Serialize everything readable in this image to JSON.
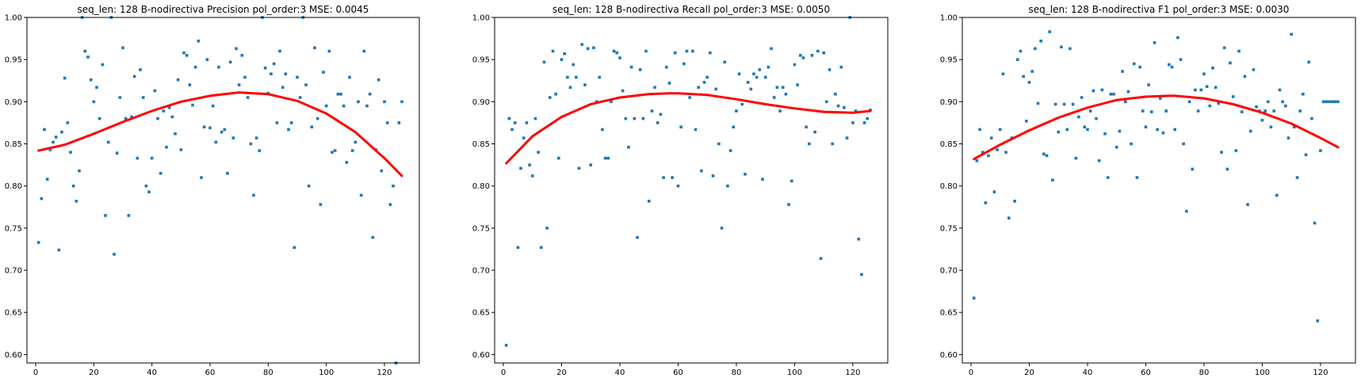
{
  "chart_data": [
    {
      "type": "scatter",
      "title": "seq_len: 128    B-nodirectiva   Precision   pol_order:3   MSE: 0.0045",
      "xlabel": "",
      "ylabel": "",
      "xlim": [
        -3,
        132
      ],
      "ylim": [
        0.59,
        1.0
      ],
      "xticks": [
        0,
        20,
        40,
        60,
        80,
        100,
        120
      ],
      "yticks": [
        0.6,
        0.65,
        0.7,
        0.75,
        0.8,
        0.85,
        0.9,
        0.95,
        1.0
      ],
      "grid": false,
      "point_color": "#1f77b4",
      "fit_color": "#ff0000",
      "points": {
        "x": [
          1,
          2,
          3,
          4,
          5,
          6,
          7,
          8,
          9,
          10,
          11,
          12,
          13,
          14,
          15,
          16,
          17,
          18,
          19,
          20,
          21,
          22,
          23,
          24,
          25,
          26,
          27,
          28,
          29,
          30,
          31,
          32,
          33,
          34,
          35,
          36,
          37,
          38,
          39,
          40,
          41,
          42,
          43,
          44,
          45,
          46,
          47,
          48,
          49,
          50,
          51,
          52,
          53,
          54,
          55,
          56,
          57,
          58,
          59,
          60,
          61,
          62,
          63,
          64,
          65,
          66,
          67,
          68,
          69,
          70,
          71,
          72,
          73,
          74,
          75,
          76,
          77,
          78,
          79,
          80,
          81,
          82,
          83,
          84,
          85,
          86,
          87,
          88,
          89,
          90,
          91,
          92,
          93,
          94,
          95,
          96,
          97,
          98,
          99,
          100,
          101,
          102,
          103,
          104,
          105,
          106,
          107,
          108,
          109,
          110,
          111,
          112,
          113,
          114,
          115,
          116,
          117,
          118,
          119,
          120,
          121,
          122,
          123,
          124,
          125,
          126
        ],
        "y": [
          0.733,
          0.785,
          0.867,
          0.808,
          0.843,
          0.852,
          0.858,
          0.724,
          0.864,
          0.928,
          0.875,
          0.84,
          0.8,
          0.782,
          0.818,
          1.0,
          0.96,
          0.953,
          0.926,
          0.9,
          0.917,
          0.88,
          0.944,
          0.765,
          0.852,
          1.0,
          0.719,
          0.839,
          0.905,
          0.964,
          0.88,
          0.765,
          0.882,
          0.93,
          0.833,
          0.938,
          0.905,
          0.8,
          0.793,
          0.833,
          0.913,
          0.88,
          0.815,
          0.889,
          0.846,
          0.893,
          0.882,
          0.862,
          0.926,
          0.843,
          0.958,
          0.955,
          0.92,
          0.896,
          0.941,
          0.972,
          0.81,
          0.87,
          0.95,
          0.869,
          0.895,
          0.852,
          0.941,
          0.864,
          0.867,
          0.815,
          0.947,
          0.857,
          0.963,
          0.92,
          0.955,
          0.929,
          0.905,
          0.85,
          0.789,
          0.857,
          0.842,
          1.0,
          0.94,
          0.91,
          0.933,
          0.945,
          0.875,
          0.96,
          0.917,
          0.933,
          0.867,
          0.875,
          0.727,
          0.929,
          0.905,
          1.0,
          0.92,
          0.8,
          0.87,
          0.964,
          0.88,
          0.778,
          0.935,
          0.895,
          0.96,
          0.84,
          0.842,
          0.909,
          0.909,
          0.895,
          0.828,
          0.929,
          0.842,
          0.852,
          0.9,
          0.789,
          0.96,
          0.895,
          0.909,
          0.739,
          0.843,
          0.926,
          0.818,
          0.9,
          0.875,
          0.778,
          0.8,
          0.59,
          0.875,
          0.9
        ]
      },
      "fit": {
        "x": [
          1,
          10,
          20,
          30,
          40,
          50,
          60,
          70,
          75,
          80,
          90,
          100,
          110,
          120,
          126
        ],
        "y": [
          0.842,
          0.849,
          0.862,
          0.876,
          0.889,
          0.9,
          0.907,
          0.911,
          0.91,
          0.909,
          0.901,
          0.886,
          0.864,
          0.833,
          0.812
        ]
      }
    },
    {
      "type": "scatter",
      "title": "seq_len: 128    B-nodirectiva   Recall   pol_order:3   MSE: 0.0050",
      "xlabel": "",
      "ylabel": "",
      "xlim": [
        -3,
        132
      ],
      "ylim": [
        0.59,
        1.0
      ],
      "xticks": [
        0,
        20,
        40,
        60,
        80,
        100,
        120
      ],
      "yticks": [
        0.6,
        0.65,
        0.7,
        0.75,
        0.8,
        0.85,
        0.9,
        0.95,
        1.0
      ],
      "grid": false,
      "point_color": "#1f77b4",
      "fit_color": "#ff0000",
      "points": {
        "x": [
          1,
          2,
          3,
          4,
          5,
          6,
          7,
          8,
          9,
          10,
          11,
          12,
          13,
          14,
          15,
          16,
          17,
          18,
          19,
          20,
          21,
          22,
          23,
          24,
          25,
          26,
          27,
          28,
          29,
          30,
          31,
          32,
          33,
          34,
          35,
          36,
          37,
          38,
          39,
          40,
          41,
          42,
          43,
          44,
          45,
          46,
          47,
          48,
          49,
          50,
          51,
          52,
          53,
          54,
          55,
          56,
          57,
          58,
          59,
          60,
          61,
          62,
          63,
          64,
          65,
          66,
          67,
          68,
          69,
          70,
          71,
          72,
          73,
          74,
          75,
          76,
          77,
          78,
          79,
          80,
          81,
          82,
          83,
          84,
          85,
          86,
          87,
          88,
          89,
          90,
          91,
          92,
          93,
          94,
          95,
          96,
          97,
          98,
          99,
          100,
          101,
          102,
          103,
          104,
          105,
          106,
          107,
          108,
          109,
          110,
          111,
          112,
          113,
          114,
          115,
          116,
          117,
          118,
          119,
          120,
          121,
          122,
          123,
          124,
          125,
          126
        ],
        "y": [
          0.611,
          0.88,
          0.867,
          0.875,
          0.727,
          0.821,
          0.857,
          0.875,
          0.825,
          0.812,
          0.88,
          0.84,
          0.727,
          0.947,
          0.75,
          0.905,
          0.96,
          0.909,
          0.833,
          0.95,
          0.957,
          0.929,
          0.917,
          0.944,
          0.929,
          0.821,
          0.968,
          0.92,
          0.963,
          0.825,
          0.964,
          0.9,
          0.929,
          0.867,
          0.833,
          0.833,
          0.9,
          0.96,
          0.958,
          0.952,
          0.913,
          0.88,
          0.846,
          0.941,
          0.88,
          0.739,
          0.938,
          0.88,
          0.96,
          0.782,
          0.889,
          0.917,
          0.875,
          0.885,
          0.81,
          0.941,
          0.922,
          0.81,
          0.958,
          0.8,
          0.87,
          0.945,
          0.96,
          0.905,
          0.96,
          0.867,
          0.917,
          0.818,
          0.923,
          0.929,
          0.958,
          0.812,
          0.915,
          0.85,
          0.75,
          0.947,
          0.8,
          0.842,
          0.87,
          0.889,
          0.933,
          0.897,
          0.814,
          0.923,
          0.915,
          0.933,
          0.929,
          0.938,
          0.808,
          0.929,
          0.941,
          0.963,
          0.905,
          0.917,
          0.889,
          0.917,
          0.909,
          0.778,
          0.806,
          0.944,
          0.92,
          0.955,
          0.952,
          0.87,
          0.85,
          0.955,
          0.864,
          0.96,
          0.714,
          0.958,
          0.9,
          0.938,
          0.85,
          0.909,
          0.895,
          0.941,
          0.893,
          0.857,
          1.0,
          0.875,
          0.889,
          0.737,
          0.695,
          0.875,
          0.88,
          0.89
        ]
      },
      "fit": {
        "x": [
          1,
          10,
          20,
          30,
          40,
          50,
          57,
          60,
          70,
          80,
          90,
          100,
          110,
          120,
          126
        ],
        "y": [
          0.827,
          0.859,
          0.882,
          0.897,
          0.905,
          0.909,
          0.91,
          0.91,
          0.908,
          0.903,
          0.897,
          0.892,
          0.888,
          0.887,
          0.889
        ]
      }
    },
    {
      "type": "scatter",
      "title": "seq_len: 128    B-nodirectiva   F1   pol_order:3   MSE: 0.0030",
      "xlabel": "",
      "ylabel": "",
      "xlim": [
        -3,
        132
      ],
      "ylim": [
        0.59,
        1.0
      ],
      "xticks": [
        0,
        20,
        40,
        60,
        80,
        100,
        120
      ],
      "yticks": [
        0.6,
        0.65,
        0.7,
        0.75,
        0.8,
        0.85,
        0.9,
        0.95,
        1.0
      ],
      "grid": false,
      "point_color": "#1f77b4",
      "fit_color": "#ff0000",
      "points": {
        "x": [
          1,
          2,
          3,
          4,
          5,
          6,
          7,
          8,
          9,
          10,
          11,
          12,
          13,
          14,
          15,
          16,
          17,
          18,
          19,
          20,
          21,
          22,
          23,
          24,
          25,
          26,
          27,
          28,
          29,
          30,
          31,
          32,
          33,
          34,
          35,
          36,
          37,
          38,
          39,
          40,
          41,
          42,
          43,
          44,
          45,
          46,
          47,
          48,
          49,
          50,
          51,
          52,
          53,
          54,
          55,
          56,
          57,
          58,
          59,
          60,
          61,
          62,
          63,
          64,
          65,
          66,
          67,
          68,
          69,
          70,
          71,
          72,
          73,
          74,
          75,
          76,
          77,
          78,
          79,
          80,
          81,
          82,
          83,
          84,
          85,
          86,
          87,
          88,
          89,
          90,
          91,
          92,
          93,
          94,
          95,
          96,
          97,
          98,
          99,
          100,
          101,
          102,
          103,
          104,
          105,
          106,
          107,
          108,
          109,
          110,
          111,
          112,
          113,
          114,
          115,
          116,
          117,
          118,
          119,
          120,
          121,
          122,
          123,
          124,
          125,
          126
        ],
        "y": [
          0.667,
          0.83,
          0.867,
          0.84,
          0.78,
          0.836,
          0.857,
          0.793,
          0.843,
          0.867,
          0.933,
          0.84,
          0.762,
          0.857,
          0.782,
          0.95,
          0.96,
          0.93,
          0.877,
          0.923,
          0.936,
          0.963,
          0.898,
          0.972,
          0.838,
          0.836,
          0.983,
          0.807,
          0.897,
          0.864,
          0.965,
          0.897,
          0.867,
          0.963,
          0.897,
          0.833,
          0.882,
          0.905,
          0.87,
          0.867,
          0.889,
          0.913,
          0.88,
          0.83,
          0.914,
          0.862,
          0.81,
          0.909,
          0.909,
          0.846,
          0.865,
          0.936,
          0.9,
          0.912,
          0.85,
          0.945,
          0.81,
          0.941,
          0.889,
          0.87,
          0.92,
          0.888,
          0.97,
          0.867,
          0.904,
          0.863,
          0.889,
          0.944,
          0.941,
          0.867,
          0.976,
          0.95,
          0.85,
          0.77,
          0.9,
          0.82,
          0.914,
          0.889,
          0.914,
          0.933,
          0.918,
          0.895,
          0.94,
          0.917,
          0.898,
          0.84,
          0.964,
          0.82,
          0.946,
          0.906,
          0.842,
          0.96,
          0.888,
          0.93,
          0.778,
          0.865,
          0.938,
          0.894,
          0.889,
          0.878,
          0.889,
          0.9,
          0.87,
          0.889,
          0.789,
          0.914,
          0.9,
          0.895,
          0.857,
          0.98,
          0.87,
          0.81,
          0.889,
          0.909,
          0.837,
          0.947,
          0.88,
          0.756,
          0.64,
          0.842,
          0.9,
          0.9,
          0.9,
          0.9,
          0.9,
          0.9
        ]
      },
      "fit": {
        "x": [
          1,
          10,
          20,
          30,
          40,
          50,
          60,
          68,
          70,
          80,
          90,
          100,
          110,
          120,
          126
        ],
        "y": [
          0.832,
          0.849,
          0.866,
          0.881,
          0.893,
          0.902,
          0.906,
          0.907,
          0.907,
          0.904,
          0.897,
          0.887,
          0.874,
          0.857,
          0.846
        ]
      }
    }
  ]
}
